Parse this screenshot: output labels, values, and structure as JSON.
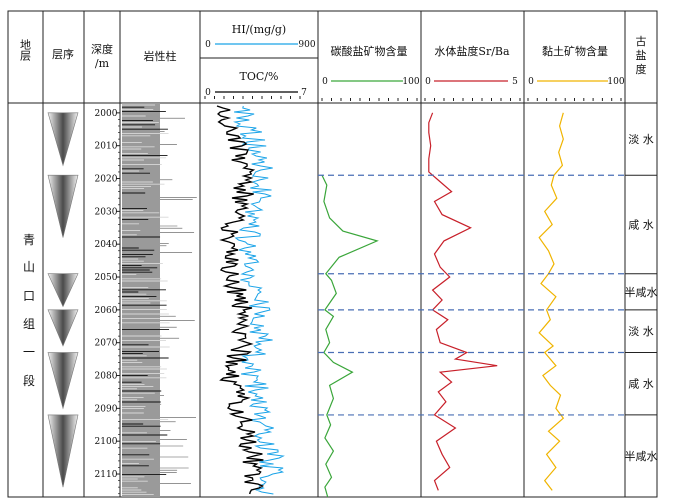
{
  "headers": {
    "formation": "地层",
    "sequence": "层序",
    "depth": [
      "深度",
      "/m"
    ],
    "lithology": "岩性柱",
    "hi": "HI/(mg/g)",
    "hi_min": "0",
    "hi_max": "900",
    "toc": "TOC/%",
    "toc_min": "0",
    "toc_max": "7",
    "carbonate": "碳酸盐矿物含量",
    "carbonate_min": "0",
    "carbonate_max": "100",
    "srba": "水体盐度Sr/Ba",
    "srba_min": "0",
    "srba_max": "5",
    "clay": "黏土矿物含量",
    "clay_min": "0",
    "clay_max": "100",
    "paleosalinity": [
      "古",
      "盐",
      "度"
    ]
  },
  "formation_name": [
    "青",
    "山",
    "口",
    "组",
    "一",
    "段"
  ],
  "colors": {
    "hi": "#1aa3e8",
    "toc": "#000000",
    "carbonate": "#3aa63a",
    "srba": "#c8202a",
    "clay": "#f0b400",
    "boundary": "#4a6fb5"
  },
  "chart_data": {
    "type": "line",
    "y_axis": {
      "ylim": [
        1997,
        2117
      ],
      "ticks": [
        2000,
        2010,
        2020,
        2030,
        2040,
        2050,
        2060,
        2070,
        2080,
        2090,
        2100,
        2110
      ],
      "inverted": true
    },
    "boundaries": [
      2019,
      2049,
      2060,
      2073,
      2092
    ],
    "sequences": [
      [
        2000,
        2016
      ],
      [
        2019,
        2038
      ],
      [
        2049,
        2059
      ],
      [
        2060,
        2071
      ],
      [
        2073,
        2090
      ],
      [
        2092,
        2114
      ]
    ],
    "salinity_zones": [
      {
        "label": "淡 水",
        "top": 1997,
        "bottom": 2019
      },
      {
        "label": "咸 水",
        "top": 2019,
        "bottom": 2049
      },
      {
        "label": "半咸水",
        "top": 2049,
        "bottom": 2060
      },
      {
        "label": "淡 水",
        "top": 2060,
        "bottom": 2073
      },
      {
        "label": "咸 水",
        "top": 2073,
        "bottom": 2092
      },
      {
        "label": "半咸水",
        "top": 2092,
        "bottom": 2117
      }
    ],
    "series": [
      {
        "key": "carbonate",
        "range": [
          0,
          100
        ],
        "depth": [
          2019,
          2022,
          2027,
          2032,
          2036,
          2039,
          2044,
          2049,
          2051,
          2055,
          2060,
          2062,
          2066,
          2070,
          2073,
          2076,
          2079,
          2083,
          2087,
          2092,
          2095,
          2099,
          2103,
          2107,
          2111,
          2114,
          2117
        ],
        "values": [
          0,
          5,
          2,
          8,
          22,
          58,
          18,
          4,
          10,
          15,
          3,
          12,
          4,
          8,
          2,
          12,
          32,
          8,
          12,
          5,
          9,
          3,
          12,
          4,
          10,
          3,
          6
        ]
      },
      {
        "key": "srba",
        "range": [
          0,
          5
        ],
        "depth": [
          2000,
          2003,
          2006,
          2010,
          2014,
          2018,
          2020,
          2024,
          2027,
          2031,
          2035,
          2039,
          2043,
          2047,
          2050,
          2054,
          2057,
          2060,
          2063,
          2066,
          2070,
          2073,
          2075,
          2077,
          2079,
          2082,
          2085,
          2088,
          2092,
          2096,
          2100,
          2104,
          2108,
          2112,
          2115
        ],
        "values": [
          0.4,
          0.2,
          0.2,
          0.3,
          0.2,
          0.2,
          0.6,
          1.4,
          0.5,
          0.9,
          2.4,
          1.0,
          0.5,
          0.8,
          1.3,
          0.4,
          0.9,
          0.4,
          1.2,
          0.6,
          0.8,
          2.2,
          1.6,
          3.8,
          0.8,
          1.4,
          0.7,
          1.1,
          0.5,
          1.6,
          0.6,
          0.9,
          1.3,
          0.5,
          0.7
        ]
      },
      {
        "key": "clay",
        "range": [
          0,
          100
        ],
        "depth": [
          2000,
          2004,
          2008,
          2012,
          2016,
          2019,
          2022,
          2026,
          2030,
          2034,
          2038,
          2042,
          2046,
          2049,
          2052,
          2056,
          2060,
          2063,
          2067,
          2071,
          2073,
          2077,
          2080,
          2083,
          2086,
          2090,
          2093,
          2097,
          2100,
          2104,
          2108,
          2112,
          2115
        ],
        "values": [
          38,
          34,
          38,
          33,
          37,
          28,
          25,
          31,
          18,
          26,
          12,
          22,
          28,
          22,
          14,
          30,
          20,
          24,
          12,
          27,
          18,
          30,
          16,
          24,
          35,
          30,
          38,
          22,
          34,
          20,
          30,
          18,
          26
        ]
      }
    ]
  }
}
